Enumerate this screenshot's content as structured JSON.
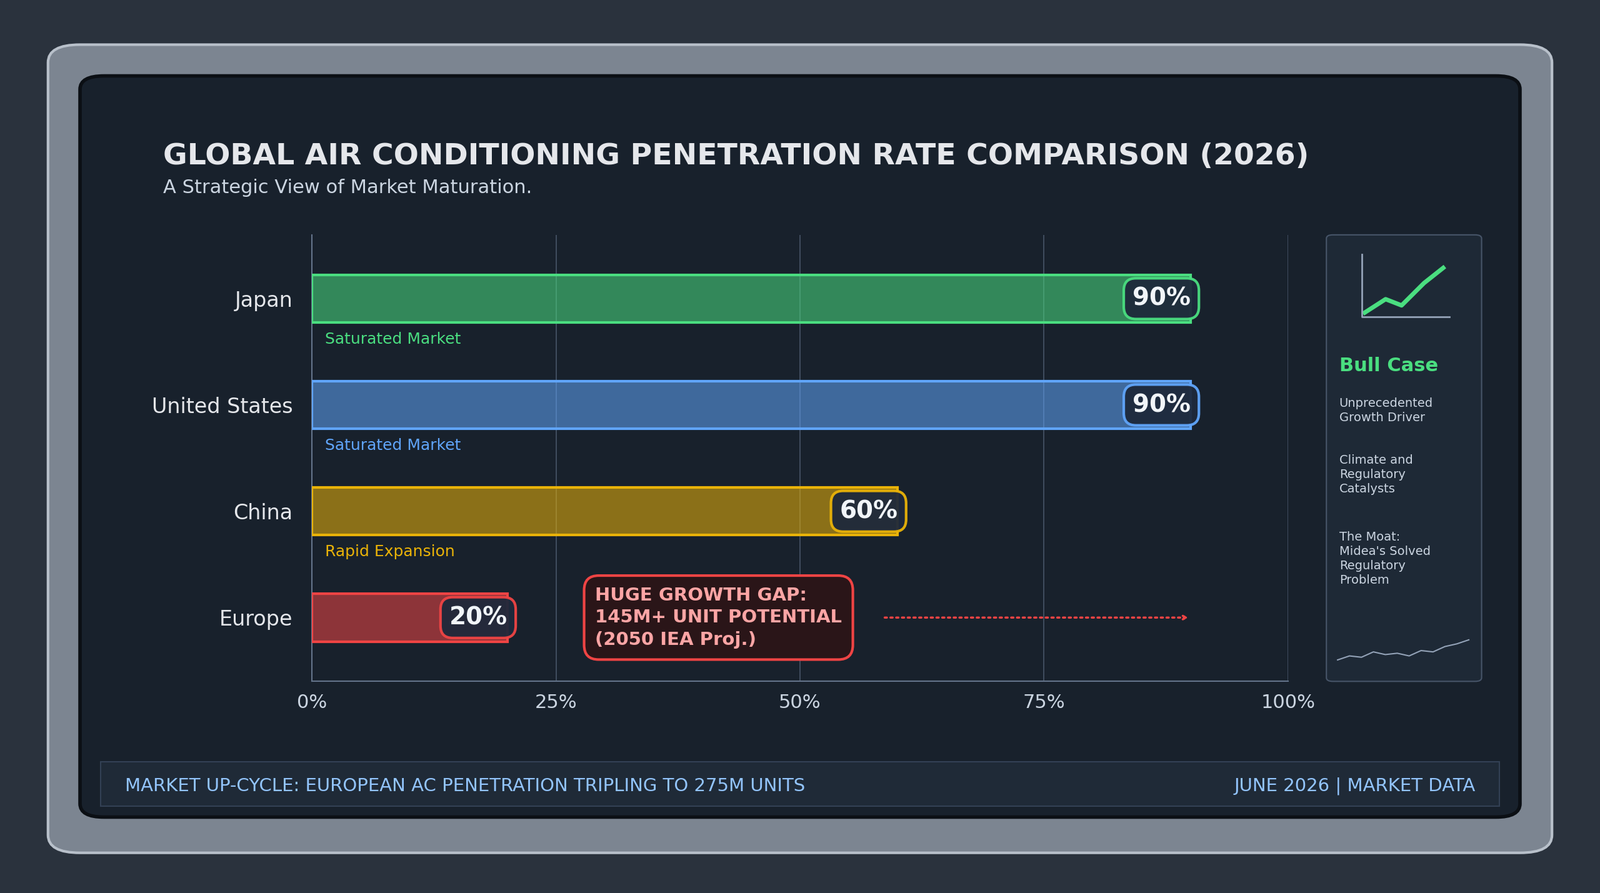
{
  "chart_data": {
    "type": "bar",
    "orientation": "horizontal",
    "title": "GLOBAL AIR CONDITIONING PENETRATION RATE COMPARISON (2026)",
    "subtitle": "A Strategic View of Market Maturation.",
    "categories": [
      "Japan",
      "United States",
      "China",
      "Europe"
    ],
    "values": [
      90,
      90,
      60,
      20
    ],
    "value_labels": [
      "90%",
      "90%",
      "60%",
      "20%"
    ],
    "data_labels": true,
    "colors": [
      "#4ade80",
      "#60a5fa",
      "#eab308",
      "#ef4444"
    ],
    "xlim": [
      0,
      100
    ],
    "xticks": [
      {
        "value": 0,
        "label": "0%"
      },
      {
        "value": 25,
        "label": "25%"
      },
      {
        "value": 50,
        "label": "50%"
      },
      {
        "value": 75,
        "label": "75%"
      },
      {
        "value": 100,
        "label": "100%"
      }
    ],
    "grid": true,
    "bar_notes": [
      {
        "category": "Japan",
        "text": "Saturated Market"
      },
      {
        "category": "United States",
        "text": "Saturated Market"
      },
      {
        "category": "China",
        "text": "Rapid Expansion"
      }
    ],
    "callout": {
      "category": "Europe",
      "lines": [
        "HUGE GROWTH GAP:",
        "145M+ UNIT POTENTIAL",
        "(2050 IEA Proj.)"
      ]
    },
    "side_panel": {
      "title": "Bull Case",
      "items": [
        "Unprecedented Growth Driver",
        "Climate and Regulatory Catalysts",
        "The Moat: Midea's Solved Regulatory Problem"
      ]
    },
    "footer": {
      "left": "MARKET UP-CYCLE: EUROPEAN AC PENETRATION TRIPLING TO 275M UNITS",
      "right": "JUNE 2026 | MARKET DATA"
    }
  }
}
